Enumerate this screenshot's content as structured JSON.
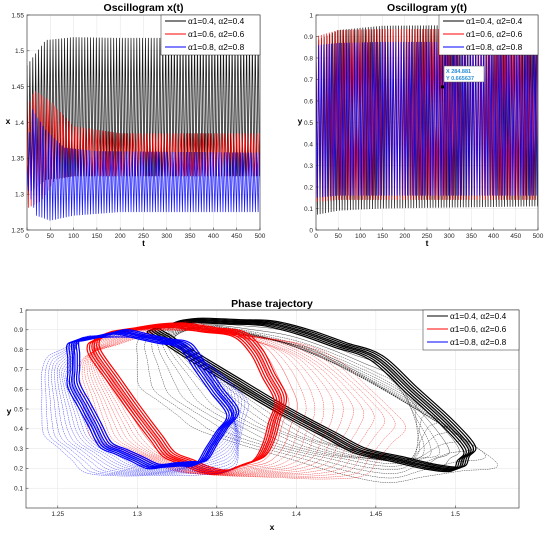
{
  "chart_data": [
    {
      "type": "line",
      "title": "Oscillogram x(t)",
      "xlabel": "t",
      "ylabel": "x",
      "xlim": [
        0,
        500
      ],
      "ylim": [
        1.25,
        1.55
      ],
      "xticks": [
        "0",
        "50",
        "100",
        "150",
        "200",
        "250",
        "300",
        "350",
        "400",
        "450",
        "500"
      ],
      "yticks": [
        "1.25",
        "1.3",
        "1.35",
        "1.4",
        "1.45",
        "1.5",
        "1.55"
      ],
      "grid": true,
      "legend_position": "top-right",
      "series": [
        {
          "name": "α1=0.4, α2=0.4",
          "color": "#000000",
          "envelope_max": [
            [
              0,
              1.48
            ],
            [
              40,
              1.515
            ],
            [
              100,
              1.519
            ],
            [
              200,
              1.518
            ],
            [
              500,
              1.518
            ]
          ],
          "envelope_min": [
            [
              0,
              1.3
            ],
            [
              40,
              1.32
            ],
            [
              100,
              1.325
            ],
            [
              200,
              1.325
            ],
            [
              500,
              1.325
            ]
          ]
        },
        {
          "name": "α1=0.6, α2=0.6",
          "color": "#ff0000",
          "envelope_max": [
            [
              0,
              1.42
            ],
            [
              15,
              1.445
            ],
            [
              50,
              1.43
            ],
            [
              100,
              1.395
            ],
            [
              200,
              1.385
            ],
            [
              500,
              1.385
            ]
          ],
          "envelope_min": [
            [
              0,
              1.28
            ],
            [
              30,
              1.29
            ],
            [
              60,
              1.32
            ],
            [
              100,
              1.325
            ],
            [
              200,
              1.325
            ],
            [
              500,
              1.325
            ]
          ]
        },
        {
          "name": "α1=0.8, α2=0.8",
          "color": "#0000ff",
          "envelope_max": [
            [
              0,
              1.34
            ],
            [
              10,
              1.42
            ],
            [
              40,
              1.39
            ],
            [
              80,
              1.365
            ],
            [
              150,
              1.36
            ],
            [
              500,
              1.358
            ]
          ],
          "envelope_min": [
            [
              0,
              1.31
            ],
            [
              20,
              1.27
            ],
            [
              50,
              1.263
            ],
            [
              100,
              1.27
            ],
            [
              200,
              1.275
            ],
            [
              500,
              1.275
            ]
          ]
        }
      ]
    },
    {
      "type": "line",
      "title": "Oscillogram y(t)",
      "xlabel": "t",
      "ylabel": "y",
      "xlim": [
        0,
        500
      ],
      "ylim": [
        0,
        1
      ],
      "xticks": [
        "0",
        "50",
        "100",
        "150",
        "200",
        "250",
        "300",
        "350",
        "400",
        "450",
        "500"
      ],
      "yticks": [
        "0",
        "0.1",
        "0.2",
        "0.3",
        "0.4",
        "0.5",
        "0.6",
        "0.7",
        "0.8",
        "0.9",
        "1"
      ],
      "grid": true,
      "legend_position": "top-right",
      "datatip": {
        "x_label": "X 284.881",
        "y_label": "Y 0.665637",
        "x": 284.881,
        "y": 0.665637
      },
      "series": [
        {
          "name": "α1=0.4, α2=0.4",
          "color": "#000000",
          "envelope_max": [
            [
              0,
              0.88
            ],
            [
              50,
              0.93
            ],
            [
              150,
              0.95
            ],
            [
              500,
              0.955
            ]
          ],
          "envelope_min": [
            [
              0,
              0.07
            ],
            [
              50,
              0.09
            ],
            [
              150,
              0.1
            ],
            [
              500,
              0.11
            ]
          ]
        },
        {
          "name": "α1=0.6, α2=0.6",
          "color": "#ff0000",
          "envelope_max": [
            [
              0,
              0.9
            ],
            [
              50,
              0.93
            ],
            [
              150,
              0.935
            ],
            [
              500,
              0.935
            ]
          ],
          "envelope_min": [
            [
              0,
              0.13
            ],
            [
              50,
              0.14
            ],
            [
              150,
              0.14
            ],
            [
              500,
              0.14
            ]
          ]
        },
        {
          "name": "α1=0.8, α2=0.8",
          "color": "#0000ff",
          "envelope_max": [
            [
              0,
              0.86
            ],
            [
              50,
              0.87
            ],
            [
              150,
              0.875
            ],
            [
              500,
              0.875
            ]
          ],
          "envelope_min": [
            [
              0,
              0.15
            ],
            [
              50,
              0.16
            ],
            [
              150,
              0.16
            ],
            [
              500,
              0.16
            ]
          ]
        }
      ]
    },
    {
      "type": "line",
      "title": "Phase trajectory",
      "xlabel": "x",
      "ylabel": "y",
      "xlim": [
        1.23,
        1.54
      ],
      "ylim": [
        0,
        1
      ],
      "xticks": [
        "1.25",
        "1.3",
        "1.35",
        "1.4",
        "1.45",
        "1.5"
      ],
      "yticks": [
        "0.1",
        "0.2",
        "0.3",
        "0.4",
        "0.5",
        "0.6",
        "0.7",
        "0.8",
        "0.9",
        "1"
      ],
      "grid": true,
      "legend_position": "top-right",
      "series": [
        {
          "name": "α1=0.4, α2=0.4",
          "color": "#000000",
          "limit_cycle": [
            [
              1.31,
              0.9
            ],
            [
              1.33,
              0.95
            ],
            [
              1.39,
              0.93
            ],
            [
              1.45,
              0.76
            ],
            [
              1.51,
              0.32
            ],
            [
              1.5,
              0.18
            ],
            [
              1.44,
              0.29
            ],
            [
              1.39,
              0.5
            ],
            [
              1.33,
              0.79
            ]
          ],
          "transient": [
            [
              1.35,
              0.92
            ],
            [
              1.42,
              0.78
            ],
            [
              1.53,
              0.22
            ],
            [
              1.45,
              0.12
            ],
            [
              1.34,
              0.38
            ],
            [
              1.3,
              0.62
            ],
            [
              1.3,
              0.88
            ]
          ]
        },
        {
          "name": "α1=0.6, α2=0.6",
          "color": "#ff0000",
          "limit_cycle": [
            [
              1.28,
              0.88
            ],
            [
              1.32,
              0.93
            ],
            [
              1.37,
              0.87
            ],
            [
              1.39,
              0.55
            ],
            [
              1.38,
              0.26
            ],
            [
              1.35,
              0.17
            ],
            [
              1.32,
              0.27
            ],
            [
              1.3,
              0.48
            ],
            [
              1.27,
              0.82
            ]
          ],
          "transient": [
            [
              1.33,
              0.94
            ],
            [
              1.42,
              0.8
            ],
            [
              1.47,
              0.42
            ],
            [
              1.44,
              0.14
            ],
            [
              1.33,
              0.17
            ],
            [
              1.27,
              0.35
            ],
            [
              1.26,
              0.75
            ]
          ]
        },
        {
          "name": "α1=0.8, α2=0.8",
          "color": "#0000ff",
          "limit_cycle": [
            [
              1.26,
              0.84
            ],
            [
              1.29,
              0.89
            ],
            [
              1.33,
              0.82
            ],
            [
              1.36,
              0.48
            ],
            [
              1.34,
              0.23
            ],
            [
              1.31,
              0.21
            ],
            [
              1.28,
              0.32
            ],
            [
              1.26,
              0.62
            ]
          ],
          "transient": [
            [
              1.27,
              0.87
            ],
            [
              1.33,
              0.85
            ],
            [
              1.37,
              0.55
            ],
            [
              1.36,
              0.17
            ],
            [
              1.27,
              0.16
            ],
            [
              1.24,
              0.38
            ],
            [
              1.24,
              0.75
            ]
          ]
        }
      ]
    }
  ]
}
